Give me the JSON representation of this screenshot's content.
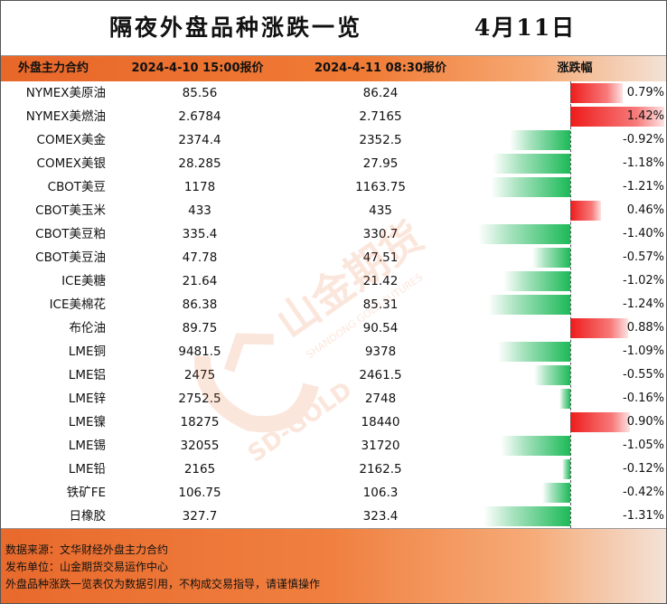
{
  "title": "隔夜外盘品种涨跌一览",
  "date": "4月11日",
  "columns": [
    "外盘主力合约",
    "2024-4-10 15:00报价",
    "2024-4-11 08:30报价",
    "涨跌幅"
  ],
  "rows": [
    {
      "name": "NYMEX美原油",
      "p1": "85.56",
      "p2": "86.24",
      "change": "0.79%",
      "value": 0.79
    },
    {
      "name": "NYMEX美燃油",
      "p1": "2.6784",
      "p2": "2.7165",
      "change": "1.42%",
      "value": 1.42
    },
    {
      "name": "COMEX美金",
      "p1": "2374.4",
      "p2": "2352.5",
      "change": "-0.92%",
      "value": -0.92
    },
    {
      "name": "COMEX美银",
      "p1": "28.285",
      "p2": "27.95",
      "change": "-1.18%",
      "value": -1.18
    },
    {
      "name": "CBOT美豆",
      "p1": "1178",
      "p2": "1163.75",
      "change": "-1.21%",
      "value": -1.21
    },
    {
      "name": "CBOT美玉米",
      "p1": "433",
      "p2": "435",
      "change": "0.46%",
      "value": 0.46
    },
    {
      "name": "CBOT美豆粕",
      "p1": "335.4",
      "p2": "330.7",
      "change": "-1.40%",
      "value": -1.4
    },
    {
      "name": "CBOT美豆油",
      "p1": "47.78",
      "p2": "47.51",
      "change": "-0.57%",
      "value": -0.57
    },
    {
      "name": "ICE美糖",
      "p1": "21.64",
      "p2": "21.42",
      "change": "-1.02%",
      "value": -1.02
    },
    {
      "name": "ICE美棉花",
      "p1": "86.38",
      "p2": "85.31",
      "change": "-1.24%",
      "value": -1.24
    },
    {
      "name": "布伦油",
      "p1": "89.75",
      "p2": "90.54",
      "change": "0.88%",
      "value": 0.88
    },
    {
      "name": "LME铜",
      "p1": "9481.5",
      "p2": "9378",
      "change": "-1.09%",
      "value": -1.09
    },
    {
      "name": "LME铝",
      "p1": "2475",
      "p2": "2461.5",
      "change": "-0.55%",
      "value": -0.55
    },
    {
      "name": "LME锌",
      "p1": "2752.5",
      "p2": "2748",
      "change": "-0.16%",
      "value": -0.16
    },
    {
      "name": "LME镍",
      "p1": "18275",
      "p2": "18440",
      "change": "0.90%",
      "value": 0.9
    },
    {
      "name": "LME锡",
      "p1": "32055",
      "p2": "31720",
      "change": "-1.05%",
      "value": -1.05
    },
    {
      "name": "LME铅",
      "p1": "2165",
      "p2": "2162.5",
      "change": "-0.12%",
      "value": -0.12
    },
    {
      "name": "铁矿FE",
      "p1": "106.75",
      "p2": "106.3",
      "change": "-0.42%",
      "value": -0.42
    },
    {
      "name": "日橡胶",
      "p1": "327.7",
      "p2": "323.4",
      "change": "-1.31%",
      "value": -1.31
    }
  ],
  "footer": [
    "数据来源：文华财经外盘主力合约",
    "发布单位：山金期货交易运作中心",
    "外盘品种涨跌一览表仅为数据引用，不构成交易指导，请谨慎操作"
  ],
  "watermark": {
    "brand_cn": "山金期货",
    "brand_en": "SD-GOLD",
    "brand_en_long": "SHANDONG GOLD FUTURES"
  },
  "colors": {
    "up": "#ee1b1b",
    "down": "#1cba58",
    "accent": "#f07b35"
  }
}
